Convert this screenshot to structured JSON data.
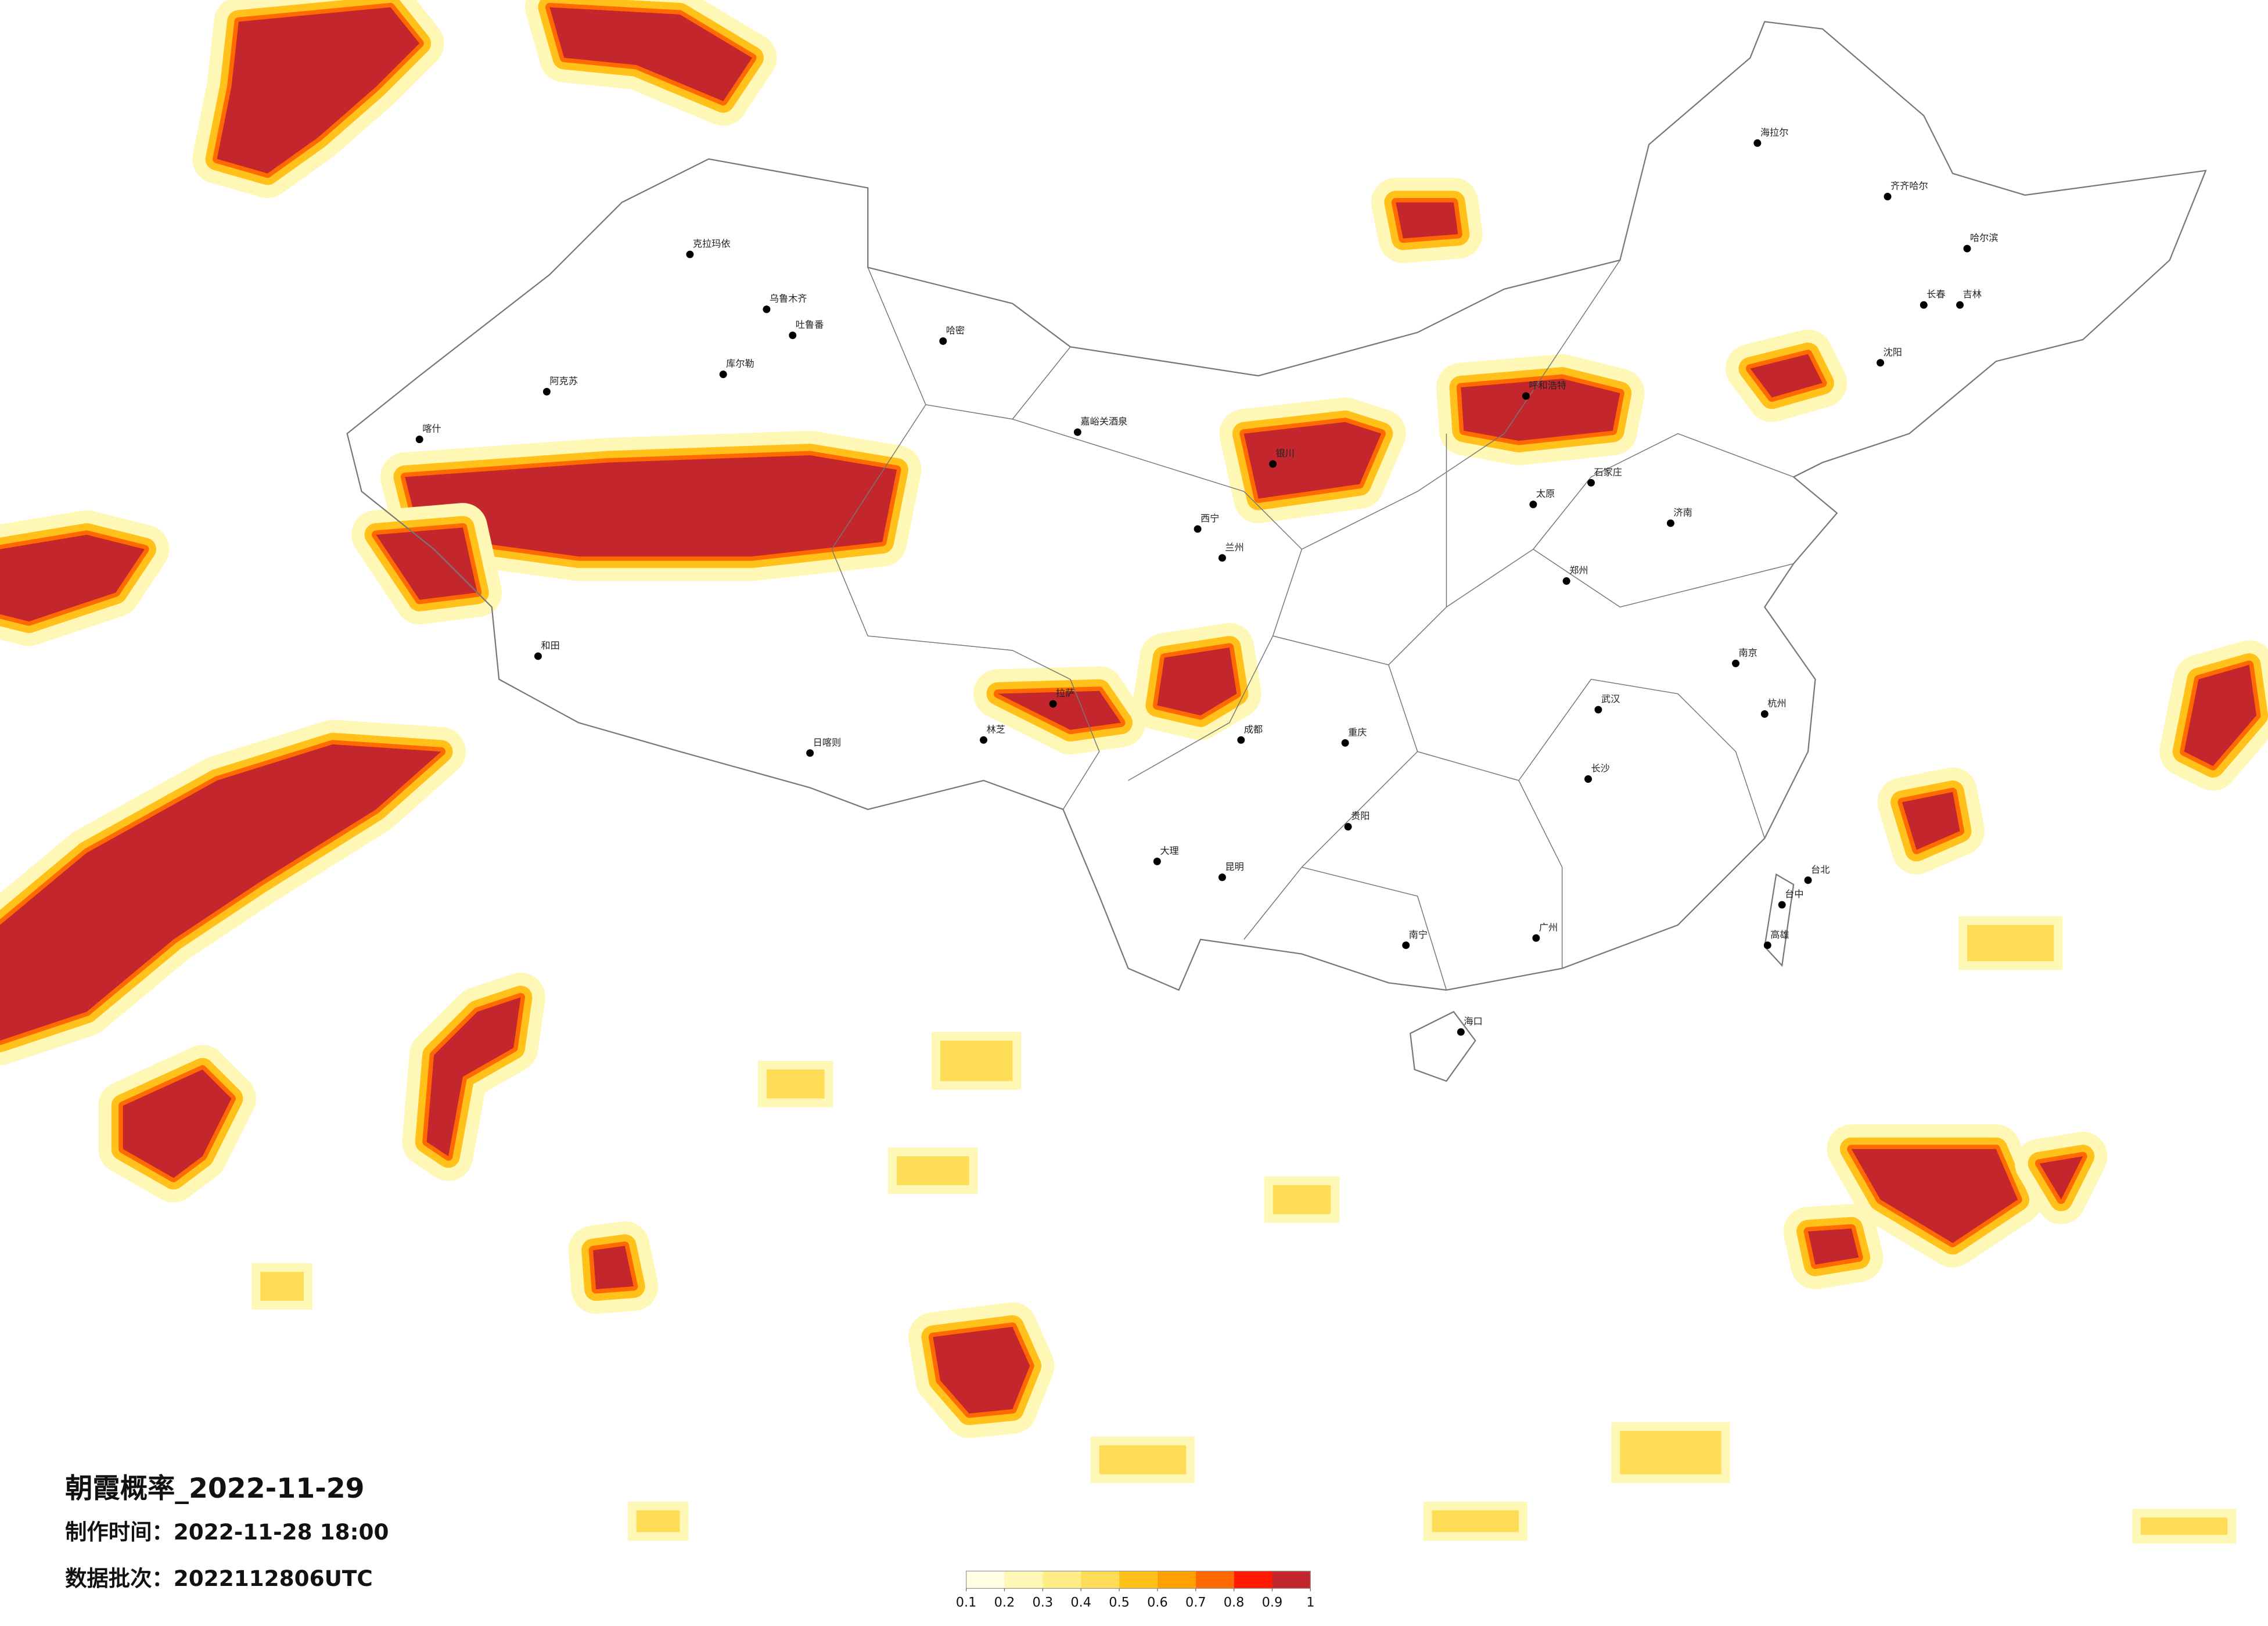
{
  "title": "朝霞概率_2022-11-29",
  "made_time": "制作时间：2022-11-28 18:00",
  "batch": "数据批次：2022112806UTC",
  "legend": {
    "ticks": [
      0.1,
      0.2,
      0.3,
      0.4,
      0.5,
      0.6,
      0.7,
      0.8,
      0.9,
      1
    ],
    "colors": [
      "#fffde4",
      "#fff7b5",
      "#ffee85",
      "#ffdc55",
      "#ffc11a",
      "#ff9f00",
      "#ff6a00",
      "#ff1a00",
      "#c4262e"
    ]
  },
  "cities": [
    "克拉玛依",
    "阿克苏",
    "库尔勒",
    "乌鲁木齐",
    "吐鲁番",
    "哈密",
    "喀什",
    "嘉峪关酒泉",
    "和田",
    "日喀则",
    "拉萨",
    "林芝",
    "西宁",
    "银川",
    "兰州",
    "成都",
    "重庆",
    "昆明",
    "大理",
    "贵阳",
    "南宁",
    "海口",
    "广州",
    "长沙",
    "武汉",
    "郑州",
    "太原",
    "石家庄",
    "济南",
    "南京",
    "杭州",
    "台北",
    "呼和浩特",
    "海拉尔",
    "齐齐哈尔",
    "哈尔滨",
    "长春",
    "吉林",
    "沈阳",
    "台中",
    "高雄"
  ]
}
